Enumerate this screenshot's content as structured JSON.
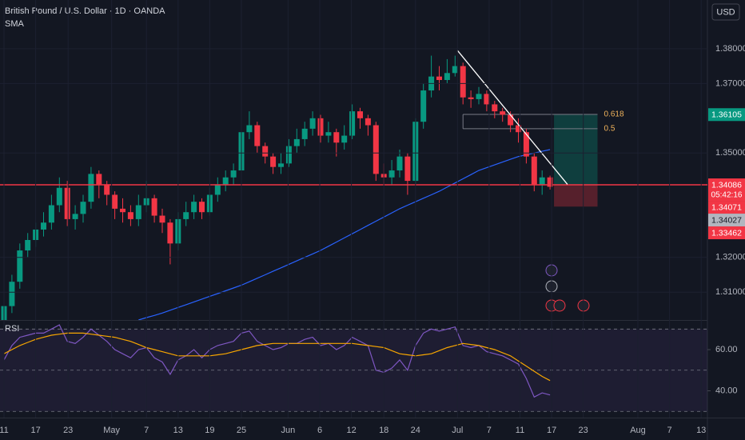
{
  "chart_data": [
    {
      "type": "candlestick",
      "title": "British Pound / U.S. Dollar · 1D · OANDA",
      "currency": "USD",
      "up_color": "#089981",
      "down_color": "#f23645",
      "open": [
        1.302,
        1.306,
        1.313,
        1.322,
        1.325,
        1.328,
        1.33,
        1.335,
        1.34,
        1.331,
        1.3325,
        1.336,
        1.344,
        1.341,
        1.338,
        1.334,
        1.333,
        1.331,
        1.335,
        1.337,
        1.332,
        1.33,
        1.324,
        1.331,
        1.333,
        1.336,
        1.333,
        1.338,
        1.341,
        1.343,
        1.345,
        1.356,
        1.358,
        1.352,
        1.349,
        1.346,
        1.347,
        1.352,
        1.354,
        1.357,
        1.36,
        1.355,
        1.356,
        1.353,
        1.355,
        1.362,
        1.36,
        1.358,
        1.344,
        1.343,
        1.345,
        1.349,
        1.342,
        1.359,
        1.368,
        1.372,
        1.371,
        1.373,
        1.375,
        1.366,
        1.3655,
        1.367,
        1.364,
        1.362,
        1.361,
        1.358,
        1.356,
        1.349,
        1.341,
        1.343
      ],
      "high": [
        1.308,
        1.315,
        1.324,
        1.327,
        1.33,
        1.333,
        1.338,
        1.343,
        1.342,
        1.335,
        1.338,
        1.346,
        1.345,
        1.342,
        1.339,
        1.337,
        1.335,
        1.338,
        1.342,
        1.338,
        1.334,
        1.331,
        1.333,
        1.336,
        1.338,
        1.337,
        1.34,
        1.343,
        1.345,
        1.347,
        1.358,
        1.362,
        1.359,
        1.353,
        1.35,
        1.35,
        1.354,
        1.357,
        1.359,
        1.362,
        1.361,
        1.359,
        1.357,
        1.358,
        1.364,
        1.363,
        1.361,
        1.359,
        1.347,
        1.348,
        1.351,
        1.35,
        1.36,
        1.37,
        1.378,
        1.375,
        1.377,
        1.378,
        1.376,
        1.368,
        1.369,
        1.368,
        1.365,
        1.363,
        1.362,
        1.36,
        1.357,
        1.35,
        1.345,
        1.3435
      ],
      "low": [
        1.3,
        1.304,
        1.311,
        1.32,
        1.323,
        1.326,
        1.328,
        1.333,
        1.329,
        1.328,
        1.33,
        1.334,
        1.337,
        1.335,
        1.331,
        1.33,
        1.329,
        1.329,
        1.333,
        1.33,
        1.327,
        1.318,
        1.322,
        1.329,
        1.331,
        1.331,
        1.332,
        1.336,
        1.339,
        1.341,
        1.344,
        1.354,
        1.35,
        1.347,
        1.344,
        1.344,
        1.346,
        1.35,
        1.352,
        1.355,
        1.353,
        1.353,
        1.349,
        1.351,
        1.354,
        1.357,
        1.355,
        1.342,
        1.341,
        1.341,
        1.343,
        1.338,
        1.341,
        1.357,
        1.366,
        1.368,
        1.37,
        1.372,
        1.364,
        1.363,
        1.364,
        1.362,
        1.36,
        1.359,
        1.356,
        1.353,
        1.347,
        1.339,
        1.338,
        1.3395
      ],
      "close": [
        1.306,
        1.313,
        1.322,
        1.325,
        1.328,
        1.33,
        1.335,
        1.34,
        1.331,
        1.3325,
        1.336,
        1.344,
        1.341,
        1.338,
        1.334,
        1.333,
        1.331,
        1.335,
        1.337,
        1.332,
        1.33,
        1.324,
        1.331,
        1.333,
        1.336,
        1.333,
        1.338,
        1.341,
        1.343,
        1.345,
        1.356,
        1.358,
        1.352,
        1.349,
        1.346,
        1.347,
        1.352,
        1.354,
        1.357,
        1.36,
        1.355,
        1.356,
        1.353,
        1.355,
        1.362,
        1.36,
        1.358,
        1.344,
        1.343,
        1.345,
        1.349,
        1.342,
        1.359,
        1.368,
        1.372,
        1.371,
        1.373,
        1.375,
        1.366,
        1.3655,
        1.367,
        1.364,
        1.362,
        1.361,
        1.358,
        1.356,
        1.349,
        1.341,
        1.343,
        1.3403
      ],
      "sma": {
        "name": "SMA",
        "color": "#2962ff",
        "values": [
          null,
          null,
          null,
          null,
          null,
          null,
          null,
          null,
          null,
          null,
          null,
          null,
          null,
          null,
          null,
          null,
          null,
          1.302,
          1.3027,
          1.3033,
          1.304,
          1.3048,
          1.3056,
          1.3064,
          1.3072,
          1.308,
          1.3088,
          1.3096,
          1.3104,
          1.3112,
          1.312,
          1.313,
          1.314,
          1.315,
          1.316,
          1.317,
          1.318,
          1.319,
          1.32,
          1.321,
          1.322,
          1.3232,
          1.3244,
          1.3256,
          1.3268,
          1.328,
          1.3292,
          1.3304,
          1.3316,
          1.3328,
          1.334,
          1.335,
          1.336,
          1.337,
          1.338,
          1.339,
          1.3402,
          1.3414,
          1.3426,
          1.3438,
          1.345,
          1.3458,
          1.3466,
          1.3474,
          1.3482,
          1.349,
          1.3495,
          1.35,
          1.3505,
          1.351
        ]
      },
      "ylim": [
        1.302,
        1.394
      ],
      "yticks": [
        {
          "value": 1.38,
          "label": "1.38000"
        },
        {
          "value": 1.37,
          "label": "1.37000"
        },
        {
          "value": 1.35,
          "label": "1.35000"
        },
        {
          "value": 1.32,
          "label": "1.32000"
        },
        {
          "value": 1.31,
          "label": "1.31000"
        }
      ],
      "xticks": [
        {
          "value": 0,
          "label": "11"
        },
        {
          "value": 4,
          "label": "17"
        },
        {
          "value": 8.1,
          "label": "23"
        },
        {
          "value": 13.6,
          "label": "May"
        },
        {
          "value": 18,
          "label": "7"
        },
        {
          "value": 22,
          "label": "13"
        },
        {
          "value": 26,
          "label": "19"
        },
        {
          "value": 30,
          "label": "25"
        },
        {
          "value": 35.9,
          "label": "Jun"
        },
        {
          "value": 39.9,
          "label": "6"
        },
        {
          "value": 43.9,
          "label": "12"
        },
        {
          "value": 48,
          "label": "18"
        },
        {
          "value": 52,
          "label": "24"
        },
        {
          "value": 57.3,
          "label": "Jul"
        },
        {
          "value": 61.3,
          "label": "7"
        },
        {
          "value": 65.2,
          "label": "11"
        },
        {
          "value": 69.2,
          "label": "17"
        },
        {
          "value": 73.2,
          "label": "23"
        },
        {
          "value": 80.1,
          "label": "Aug"
        },
        {
          "value": 84.1,
          "label": "7"
        },
        {
          "value": 88.1,
          "label": "13"
        }
      ],
      "hline": {
        "value": 1.34086,
        "color": "#f23645"
      },
      "trend": {
        "start": 57.3,
        "start_price": 1.3795,
        "end": 71.2,
        "end_price": 1.341,
        "color": "#ffffff"
      },
      "fib": {
        "start": 58,
        "end": 75,
        "levels": [
          {
            "value": 1.3611,
            "label": "0.618"
          },
          {
            "value": 1.357,
            "label": "0.5"
          }
        ]
      },
      "position": {
        "start": 69.5,
        "end": 75,
        "target": 1.3611,
        "entry": 1.3409,
        "stop": 1.3346
      },
      "price_tags": [
        {
          "value": 1.36105,
          "label": "1.36105",
          "color": "#089981",
          "text_color": "#ffffff"
        },
        {
          "value": 1.34086,
          "label": "1.34086",
          "sublabel": "05:42:16",
          "color": "#f23645",
          "text_color": "#ffffff"
        },
        {
          "value": 1.34071,
          "label": "1.34071",
          "color": "#f23645",
          "text_color": "#ffffff"
        },
        {
          "value": 1.34027,
          "label": "1.34027",
          "color": "#b2b5be",
          "text_color": "#131722"
        },
        {
          "value": 1.33462,
          "label": "1.33462",
          "color": "#f23645",
          "text_color": "#ffffff"
        }
      ]
    },
    {
      "type": "line",
      "title": "RSI",
      "series": [
        {
          "color": "#7e57c2",
          "values": [
            55,
            62,
            66,
            67,
            68,
            68,
            70,
            72,
            64,
            63,
            66,
            70,
            67,
            64,
            60,
            58,
            56,
            60,
            61,
            56,
            54,
            48,
            55,
            57,
            60,
            56,
            60,
            62,
            63,
            64,
            68,
            69,
            64,
            62,
            60,
            61,
            63,
            63,
            65,
            66,
            62,
            63,
            60,
            62,
            66,
            64,
            62,
            50,
            49,
            51,
            55,
            50,
            62,
            68,
            70,
            69,
            70,
            71,
            62,
            61,
            62,
            59,
            58,
            57,
            55,
            53,
            46,
            37,
            39,
            38
          ]
        },
        {
          "color": "#f7a600",
          "values": [
            58,
            60,
            62,
            63.5,
            65,
            66,
            67,
            67.5,
            68,
            68,
            68,
            67.5,
            67,
            66.5,
            66,
            65,
            64,
            62.5,
            61,
            60,
            59,
            58,
            57,
            57,
            57,
            57,
            57,
            57.5,
            58,
            59,
            60,
            61,
            62,
            62.5,
            63,
            63,
            63,
            63,
            63,
            63,
            63,
            63,
            63,
            63,
            63,
            62.5,
            62,
            61.5,
            61,
            59.5,
            58,
            57.5,
            57,
            57.5,
            58,
            59.5,
            61,
            62,
            63,
            62.5,
            62,
            61,
            60,
            58.5,
            57,
            54.5,
            52,
            49.5,
            47,
            45
          ]
        }
      ],
      "ylim": [
        27,
        74
      ],
      "yticks": [
        {
          "value": 60,
          "label": "60.00"
        },
        {
          "value": 40,
          "label": "40.00"
        }
      ],
      "levels": [
        70,
        50,
        30
      ]
    }
  ]
}
